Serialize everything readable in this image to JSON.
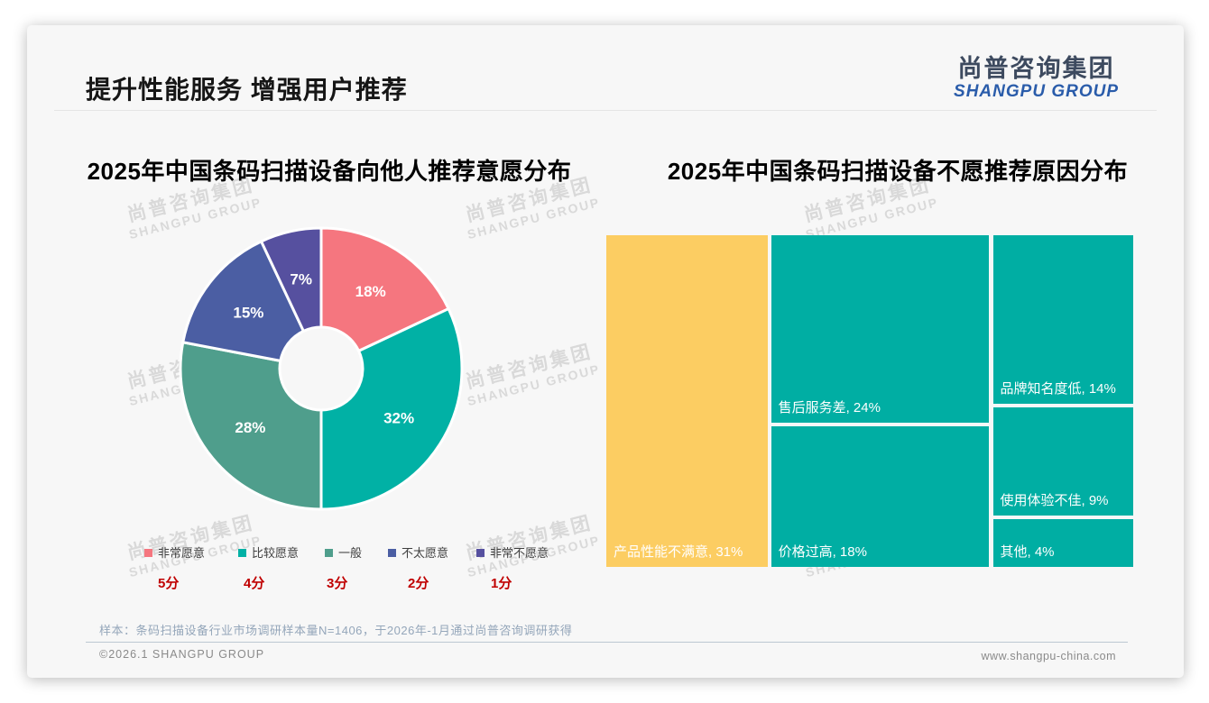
{
  "page": {
    "title": "提升性能服务 增强用户推荐"
  },
  "logo": {
    "cn": "尚普咨询集团",
    "en": "SHANGPU GROUP"
  },
  "watermark": {
    "cn": "尚普咨询集团",
    "en": "SHANGPU GROUP"
  },
  "chart_data": [
    {
      "type": "donut",
      "title": "2025年中国条码扫描设备向他人推荐意愿分布",
      "value_suffix": "%",
      "start_angle_deg": 0,
      "clockwise": true,
      "inner_radius_ratio": 0.29,
      "series": [
        {
          "label": "非常愿意",
          "score": "5分",
          "value": 18,
          "color": "#F5767F"
        },
        {
          "label": "比较愿意",
          "score": "4分",
          "value": 32,
          "color": "#01B1A5"
        },
        {
          "label": "一般",
          "score": "3分",
          "value": 28,
          "color": "#4F9E8C"
        },
        {
          "label": "不太愿意",
          "score": "2分",
          "value": 15,
          "color": "#4B5EA3"
        },
        {
          "label": "非常不愿意",
          "score": "1分",
          "value": 7,
          "color": "#56509F"
        }
      ],
      "legend_position": "bottom",
      "score_color": "#C00000"
    },
    {
      "type": "treemap",
      "title": "2025年中国条码扫描设备不愿推荐原因分布",
      "items": [
        {
          "label": "产品性能不满意",
          "value": 31,
          "color": "#FCCD62"
        },
        {
          "label": "售后服务差",
          "value": 24,
          "color": "#00AEA3"
        },
        {
          "label": "价格过高",
          "value": 18,
          "color": "#00AEA3"
        },
        {
          "label": "品牌知名度低",
          "value": 14,
          "color": "#00AEA3"
        },
        {
          "label": "使用体验不佳",
          "value": 9,
          "color": "#00AEA3"
        },
        {
          "label": "其他",
          "value": 4,
          "color": "#00AEA3"
        }
      ],
      "columns": [
        [
          0
        ],
        [
          1,
          2
        ],
        [
          3,
          4,
          5
        ]
      ],
      "label_format": "label, value%"
    }
  ],
  "footnote": "样本：条码扫描设备行业市场调研样本量N=1406，于2026年-1月通过尚普咨询调研获得",
  "footer": {
    "left": "©2026.1 SHANGPU GROUP",
    "right": "www.shangpu-china.com"
  }
}
